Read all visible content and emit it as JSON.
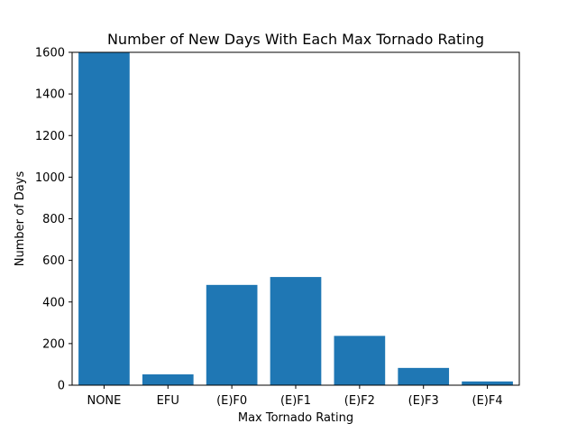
{
  "chart_data": {
    "type": "bar",
    "title": "Number of New Days With Each Max Tornado Rating",
    "xlabel": "Max Tornado Rating",
    "ylabel": "Number of Days",
    "categories": [
      "NONE",
      "EFU",
      "(E)F0",
      "(E)F1",
      "(E)F2",
      "(E)F3",
      "(E)F4"
    ],
    "values": [
      1600,
      52,
      482,
      520,
      237,
      83,
      18
    ],
    "ylim": [
      0,
      1600
    ],
    "yticks": [
      0,
      200,
      400,
      600,
      800,
      1000,
      1200,
      1400,
      1600
    ],
    "grid": false,
    "bar_color": "#1f77b4"
  }
}
